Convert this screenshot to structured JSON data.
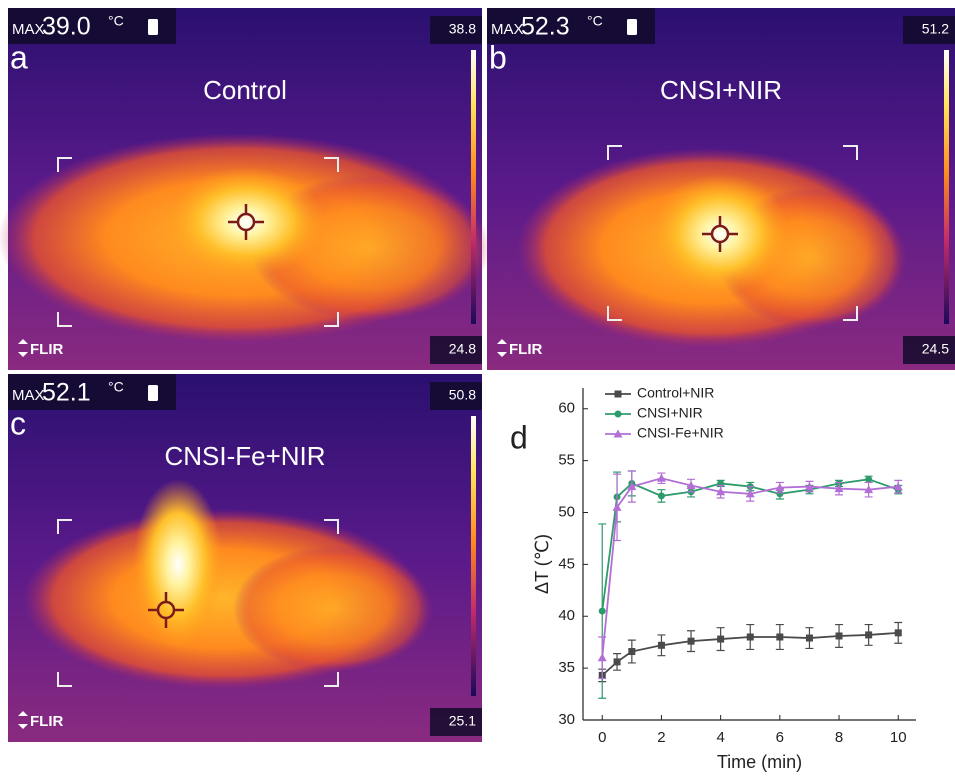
{
  "panels": [
    {
      "letter": "a",
      "title": "Control",
      "max_label": "MAX",
      "max_value": "39.0",
      "unit": "°C",
      "scale_top": "38.8",
      "scale_bottom": "24.8",
      "logo": "FLIR"
    },
    {
      "letter": "b",
      "title": "CNSI+NIR",
      "max_label": "MAX",
      "max_value": "52.3",
      "unit": "°C",
      "scale_top": "51.2",
      "scale_bottom": "24.5",
      "logo": "FLIR"
    },
    {
      "letter": "c",
      "title": "CNSI-Fe+NIR",
      "max_label": "MAX",
      "max_value": "52.1",
      "unit": "°C",
      "scale_top": "50.8",
      "scale_bottom": "25.1",
      "logo": "FLIR"
    }
  ],
  "chart_data": {
    "type": "line",
    "panel_label": "d",
    "x_label": "Time (min)",
    "y_label": "ΔT (℃)",
    "x": [
      0,
      0.5,
      1,
      2,
      3,
      4,
      5,
      6,
      7,
      8,
      9,
      10
    ],
    "series": [
      {
        "name": "Control+NIR",
        "color": "#4a4a4a",
        "marker": "square",
        "values": [
          34.3,
          35.6,
          36.6,
          37.2,
          37.6,
          37.8,
          38.0,
          38.0,
          37.9,
          38.1,
          38.2,
          38.4
        ],
        "errors": [
          0.6,
          0.8,
          1.1,
          1.0,
          1.0,
          1.1,
          1.2,
          1.2,
          1.0,
          1.1,
          1.0,
          1.0
        ]
      },
      {
        "name": "CNSI+NIR",
        "color": "#2e9b6b",
        "marker": "circle",
        "values": [
          40.5,
          51.5,
          52.8,
          51.6,
          52.0,
          52.8,
          52.5,
          51.8,
          52.2,
          52.8,
          53.2,
          52.2
        ],
        "errors": [
          8.4,
          2.4,
          1.2,
          0.6,
          0.5,
          0.3,
          0.4,
          0.5,
          0.4,
          0.3,
          0.3,
          0.4
        ]
      },
      {
        "name": "CNSI-Fe+NIR",
        "color": "#b36fd6",
        "marker": "triangle",
        "values": [
          36.0,
          50.5,
          52.5,
          53.3,
          52.6,
          52.0,
          51.8,
          52.4,
          52.5,
          52.3,
          52.2,
          52.5
        ],
        "errors": [
          2.0,
          3.2,
          1.5,
          0.5,
          0.6,
          0.6,
          0.7,
          0.5,
          0.5,
          0.6,
          0.7,
          0.6
        ]
      }
    ],
    "xlim": [
      -0.65,
      10.6
    ],
    "ylim": [
      30,
      62
    ],
    "xticks": [
      0,
      2,
      4,
      6,
      8,
      10
    ],
    "yticks": [
      30,
      35,
      40,
      45,
      50,
      55,
      60
    ],
    "legend": "upper left",
    "grid": false
  }
}
